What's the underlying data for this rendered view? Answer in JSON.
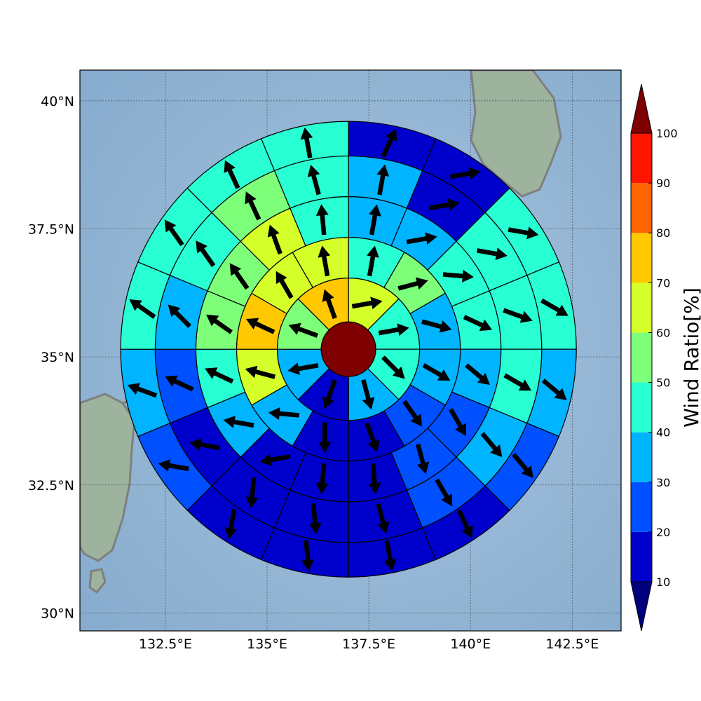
{
  "chart_data": {
    "type": "polar-sector-map",
    "title": "",
    "x_ticks": [
      "132.5°E",
      "135°E",
      "137.5°E",
      "140°E",
      "142.5°E"
    ],
    "x_tick_values": [
      132.5,
      135,
      137.5,
      140,
      142.5
    ],
    "y_ticks": [
      "30°N",
      "32.5°N",
      "35°N",
      "37.5°N",
      "40°N"
    ],
    "y_tick_values": [
      30,
      32.5,
      35,
      37.5,
      40
    ],
    "xlim": [
      130.4,
      143.7
    ],
    "ylim": [
      29.65,
      40.6
    ],
    "center": {
      "lon": 137.0,
      "lat": 35.15,
      "value": 100
    },
    "ring_radii_deg": [
      0.67,
      1.75,
      2.75,
      3.75,
      4.75,
      5.6
    ],
    "colorbar": {
      "label": "Wind Ratio[%]",
      "ticks": [
        10,
        20,
        30,
        40,
        50,
        60,
        70,
        80,
        90,
        100
      ],
      "tick_labels": [
        "10",
        "20",
        "30",
        "40",
        "50",
        "60",
        "70",
        "80",
        "90",
        "100"
      ],
      "colors": [
        "#0000cc",
        "#0050ff",
        "#00b4ff",
        "#28ffd2",
        "#7dff7a",
        "#d4ff28",
        "#ffc800",
        "#ff6400",
        "#ff1400"
      ],
      "under_color": "#00007f",
      "over_color": "#7f0000"
    },
    "rings": [
      {
        "sectors": 8,
        "values": [
          65,
          45,
          45,
          35,
          15,
          35,
          55,
          75
        ],
        "arrows_deg": [
          80,
          80,
          135,
          165,
          200,
          260,
          290,
          340
        ]
      },
      {
        "sectors": 12,
        "values": [
          45,
          55,
          35,
          35,
          20,
          15,
          15,
          30,
          65,
          75,
          65,
          65
        ],
        "arrows_deg": [
          10,
          75,
          105,
          120,
          145,
          160,
          180,
          275,
          285,
          295,
          330,
          350
        ]
      },
      {
        "sectors": 16,
        "values": [
          35,
          35,
          45,
          45,
          35,
          25,
          25,
          15,
          15,
          15,
          35,
          45,
          55,
          55,
          65,
          45
        ],
        "arrows_deg": [
          10,
          80,
          95,
          115,
          130,
          150,
          165,
          175,
          185,
          260,
          280,
          295,
          305,
          325,
          340,
          355
        ]
      },
      {
        "sectors": 16,
        "values": [
          35,
          15,
          45,
          45,
          45,
          35,
          25,
          15,
          15,
          15,
          15,
          25,
          35,
          45,
          55,
          45
        ],
        "arrows_deg": [
          10,
          80,
          100,
          110,
          120,
          140,
          150,
          165,
          175,
          185,
          280,
          295,
          315,
          325,
          335,
          345
        ]
      },
      {
        "sectors": 16,
        "values": [
          15,
          15,
          45,
          45,
          35,
          20,
          15,
          10,
          10,
          15,
          20,
          30,
          45,
          45,
          45,
          45
        ],
        "arrows_deg": [
          25,
          80,
          100,
          120,
          130,
          140,
          155,
          170,
          175,
          190,
          280,
          290,
          305,
          325,
          335,
          350
        ]
      }
    ]
  }
}
